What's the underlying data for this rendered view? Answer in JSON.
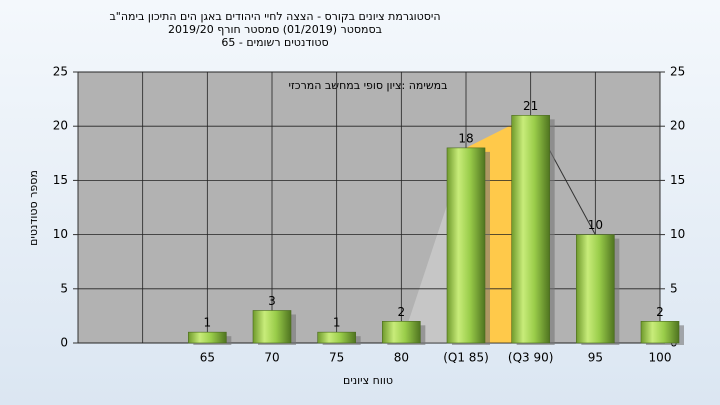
{
  "chart_data": {
    "type": "bar",
    "title": [
      "היסטוגרמת ציונים בקורס - הצצה לחיי היהודים באגן הים התיכון בימה\"ב",
      "בסמסטר  (01/2019)  סמסטר חורף 2019/20",
      "סטודנטים רשומים - 65"
    ],
    "annotation": "במשימה :ציון סופי במחשב המרכזי",
    "x_label": "טווח ציונים",
    "y_label": "מספר סטודנטים",
    "categories": [
      null,
      "65",
      "70",
      "75",
      "80",
      "(Q1 85)",
      "(Q3 90)",
      "95",
      "100"
    ],
    "values": [
      null,
      1,
      3,
      1,
      2,
      18,
      21,
      10,
      2
    ],
    "color": "#9acd4a",
    "ylim": [
      0,
      25
    ],
    "yticks": [
      0,
      5,
      10,
      15,
      20,
      25
    ],
    "y2lim": [
      0,
      25
    ],
    "y2ticks": [
      0,
      5,
      10,
      15,
      20,
      25
    ],
    "grid": true
  }
}
